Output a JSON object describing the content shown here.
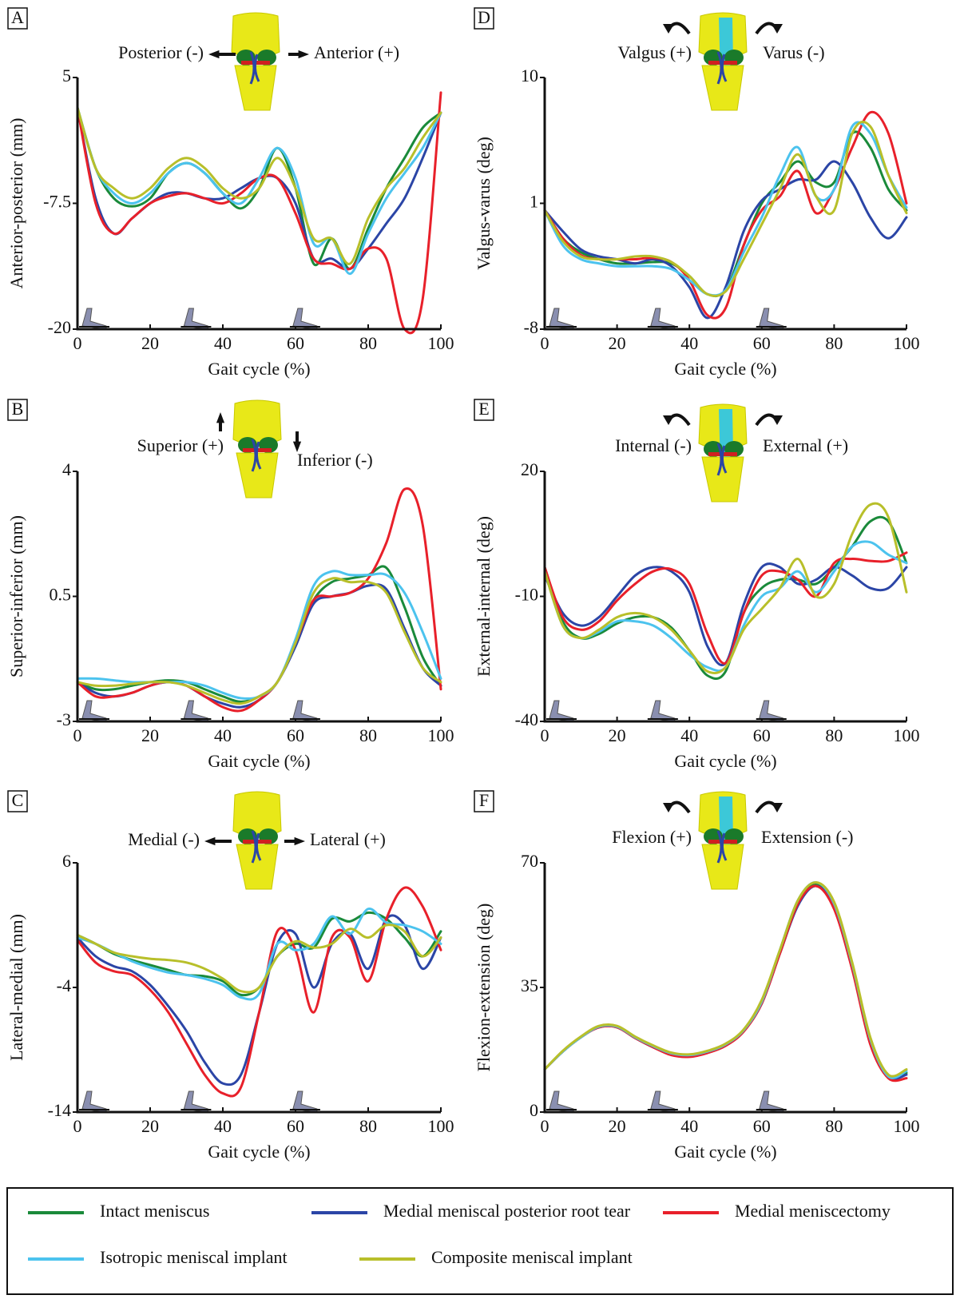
{
  "legend": [
    {
      "name": "Intact meniscus",
      "color": "#1a8a3a"
    },
    {
      "name": "Medial meniscal posterior root tear",
      "color": "#2b45a6"
    },
    {
      "name": "Medial meniscectomy",
      "color": "#e8202a"
    },
    {
      "name": "Isotropic meniscal implant",
      "color": "#4cc3ee"
    },
    {
      "name": "Composite meniscal implant",
      "color": "#b8bf2a"
    }
  ],
  "chart_data": [
    {
      "type": "line",
      "panel": "A",
      "left_label": "Posterior (-)",
      "right_label": "Anterior (+)",
      "ylabel": "Anterior-posterior (mm)",
      "xlabel": "Gait cycle (%)",
      "x": [
        0,
        5,
        10,
        15,
        20,
        25,
        30,
        35,
        40,
        45,
        50,
        55,
        60,
        65,
        70,
        75,
        80,
        85,
        90,
        95,
        100
      ],
      "xlim": [
        0,
        100
      ],
      "xticks": [
        0,
        20,
        40,
        60,
        80,
        100
      ],
      "ylim": [
        -20,
        5
      ],
      "yticks": [
        5,
        -7.5,
        -20
      ],
      "series": [
        {
          "values": [
            2,
            -4,
            -7,
            -7.8,
            -7,
            -4.5,
            -3.5,
            -4.5,
            -6.5,
            -8,
            -6,
            -2,
            -6,
            -13.5,
            -11,
            -14,
            -10,
            -6,
            -3,
            0,
            1.5
          ]
        },
        {
          "values": [
            2,
            -7,
            -10.5,
            -9,
            -7.5,
            -6.5,
            -6.5,
            -7,
            -7,
            -6,
            -5,
            -5,
            -7.5,
            -13,
            -13,
            -14,
            -12,
            -9.5,
            -7,
            -3,
            1.5
          ]
        },
        {
          "values": [
            2,
            -7.5,
            -10.5,
            -9,
            -7.5,
            -6.8,
            -6.5,
            -7,
            -7.5,
            -6.5,
            -5,
            -5,
            -8.5,
            -13,
            -13.5,
            -14,
            -12,
            -13,
            -20,
            -17,
            3.5
          ]
        },
        {
          "values": [
            2,
            -4,
            -6.5,
            -7.5,
            -6.5,
            -4.5,
            -3.5,
            -4.5,
            -6.5,
            -7.5,
            -5,
            -2,
            -5,
            -11.5,
            -11,
            -14.5,
            -10.5,
            -7,
            -4.5,
            -2,
            1.5
          ]
        },
        {
          "values": [
            2,
            -4,
            -6,
            -7,
            -6,
            -4,
            -3,
            -4,
            -6,
            -7,
            -6,
            -3,
            -6,
            -11,
            -11,
            -13.5,
            -9,
            -6,
            -4,
            -1,
            1.5
          ]
        }
      ]
    },
    {
      "type": "line",
      "panel": "B",
      "left_label": "Superior (+)",
      "right_label": "Inferior (-)",
      "ylabel": "Superior-inferior (mm)",
      "xlabel": "Gait cycle (%)",
      "x": [
        0,
        5,
        10,
        15,
        20,
        25,
        30,
        35,
        40,
        45,
        50,
        55,
        60,
        65,
        70,
        75,
        80,
        85,
        90,
        95,
        100
      ],
      "xlim": [
        0,
        100
      ],
      "xticks": [
        0,
        20,
        40,
        60,
        80,
        100
      ],
      "ylim": [
        -3,
        4
      ],
      "yticks": [
        4,
        0.5,
        -3
      ],
      "series": [
        {
          "values": [
            -1.9,
            -2.1,
            -2.1,
            -2,
            -1.9,
            -1.85,
            -1.9,
            -2.1,
            -2.3,
            -2.45,
            -2.3,
            -1.9,
            -0.8,
            0.4,
            0.9,
            1,
            1.1,
            1.3,
            0.2,
            -1.2,
            -2
          ]
        },
        {
          "values": [
            -1.9,
            -2.2,
            -2.3,
            -2.2,
            -2,
            -1.9,
            -2,
            -2.3,
            -2.5,
            -2.6,
            -2.4,
            -1.9,
            -0.9,
            0.3,
            0.5,
            0.6,
            0.8,
            0.7,
            -0.4,
            -1.5,
            -2
          ]
        },
        {
          "values": [
            -1.9,
            -2.3,
            -2.3,
            -2.2,
            -2,
            -1.9,
            -2,
            -2.3,
            -2.6,
            -2.7,
            -2.4,
            -1.9,
            -0.8,
            0.4,
            0.5,
            0.6,
            1,
            2,
            3.5,
            2.5,
            -2.1
          ]
        },
        {
          "values": [
            -1.8,
            -1.8,
            -1.85,
            -1.9,
            -1.9,
            -1.9,
            -1.9,
            -2,
            -2.2,
            -2.35,
            -2.3,
            -1.9,
            -0.7,
            0.8,
            1.2,
            1.1,
            1.1,
            1.1,
            0.6,
            -0.5,
            -1.8
          ]
        },
        {
          "values": [
            -1.9,
            -2,
            -2,
            -1.95,
            -1.9,
            -1.9,
            -2,
            -2.2,
            -2.4,
            -2.5,
            -2.3,
            -1.9,
            -0.8,
            0.6,
            1,
            0.9,
            0.9,
            0.6,
            -0.5,
            -1.5,
            -1.9
          ]
        }
      ]
    },
    {
      "type": "line",
      "panel": "C",
      "left_label": "Medial (-)",
      "right_label": "Lateral (+)",
      "ylabel": "Lateral-medial (mm)",
      "xlabel": "Gait cycle (%)",
      "x": [
        0,
        5,
        10,
        15,
        20,
        25,
        30,
        35,
        40,
        45,
        50,
        55,
        60,
        65,
        70,
        75,
        80,
        85,
        90,
        95,
        100
      ],
      "xlim": [
        0,
        100
      ],
      "xticks": [
        0,
        20,
        40,
        60,
        80,
        100
      ],
      "ylim": [
        -14,
        6
      ],
      "yticks": [
        6,
        -4,
        -14
      ],
      "series": [
        {
          "values": [
            0.2,
            -0.5,
            -1.3,
            -1.8,
            -2.2,
            -2.6,
            -3,
            -3.1,
            -3.5,
            -4.6,
            -4,
            -1.5,
            -0.5,
            -0.8,
            1.5,
            1.3,
            2,
            1.5,
            0,
            -1.5,
            0.5
          ]
        },
        {
          "values": [
            0,
            -1.5,
            -2.3,
            -2.7,
            -3.8,
            -5.5,
            -7.5,
            -10,
            -11.7,
            -11,
            -6,
            -0.5,
            0.3,
            -4,
            -0.5,
            0.3,
            -2.5,
            1.5,
            1,
            -2.5,
            0
          ]
        },
        {
          "values": [
            -0.2,
            -2,
            -2.7,
            -3,
            -4.2,
            -6,
            -8.5,
            -11,
            -12.5,
            -12,
            -6,
            0.5,
            -1,
            -6,
            0,
            0,
            -3.5,
            1.5,
            4,
            2.5,
            -1
          ]
        },
        {
          "values": [
            0,
            -0.5,
            -1.2,
            -1.9,
            -2.4,
            -2.8,
            -3,
            -3.3,
            -3.8,
            -4.8,
            -4.5,
            -0.5,
            -1,
            -0.5,
            1.7,
            0.3,
            2.3,
            1.2,
            1,
            0.5,
            -0.5
          ]
        },
        {
          "values": [
            0.2,
            -0.5,
            -1.2,
            -1.5,
            -1.7,
            -1.8,
            -2,
            -2.5,
            -3.3,
            -4.3,
            -4,
            -1.5,
            -0.3,
            -0.8,
            -0.5,
            0.7,
            0,
            1,
            0.5,
            -1.5,
            0
          ]
        }
      ]
    },
    {
      "type": "line",
      "panel": "D",
      "left_label": "Valgus (+)",
      "right_label": "Varus (-)",
      "ylabel": "Valgus-varus (deg)",
      "xlabel": "Gait cycle (%)",
      "x": [
        0,
        5,
        10,
        15,
        20,
        25,
        30,
        35,
        40,
        45,
        50,
        55,
        60,
        65,
        70,
        75,
        80,
        85,
        90,
        95,
        100
      ],
      "xlim": [
        0,
        100
      ],
      "xticks": [
        0,
        20,
        40,
        60,
        80,
        100
      ],
      "ylim": [
        -8,
        10
      ],
      "yticks": [
        10,
        1,
        -8
      ],
      "series": [
        {
          "values": [
            0.5,
            -1.5,
            -2.5,
            -3,
            -3.3,
            -3.3,
            -3.2,
            -3.3,
            -4.2,
            -5.5,
            -5.2,
            -2,
            1,
            2.5,
            4,
            2.5,
            2.5,
            6,
            5,
            2,
            0.5
          ]
        },
        {
          "values": [
            0.5,
            -1,
            -2.3,
            -2.8,
            -3,
            -3.3,
            -3,
            -3.5,
            -5,
            -7.2,
            -5,
            -1,
            1.2,
            2,
            2.7,
            2.7,
            4,
            2.5,
            0,
            -1.5,
            0
          ]
        },
        {
          "values": [
            0.5,
            -1.5,
            -2.7,
            -3,
            -3,
            -3,
            -2.9,
            -3.2,
            -4.5,
            -7,
            -6.5,
            -2,
            0.5,
            1.5,
            3.3,
            0.3,
            2,
            5,
            7.5,
            6,
            1
          ]
        },
        {
          "values": [
            0.5,
            -2,
            -3,
            -3.3,
            -3.5,
            -3.5,
            -3.5,
            -3.7,
            -4.5,
            -5.5,
            -5.2,
            -2.5,
            0,
            3,
            5,
            1.5,
            2,
            6.5,
            6,
            3,
            0.7
          ]
        },
        {
          "values": [
            0.5,
            -1.7,
            -2.8,
            -3,
            -3,
            -2.8,
            -2.8,
            -3.2,
            -4.2,
            -5.5,
            -5.3,
            -3,
            -0.5,
            2,
            4.5,
            1.5,
            0.5,
            6,
            6.5,
            3,
            0.3
          ]
        }
      ]
    },
    {
      "type": "line",
      "panel": "E",
      "left_label": "Internal (-)",
      "right_label": "External (+)",
      "ylabel": "External-internal (deg)",
      "xlabel": "Gait cycle (%)",
      "x": [
        0,
        5,
        10,
        15,
        20,
        25,
        30,
        35,
        40,
        45,
        50,
        55,
        60,
        65,
        70,
        75,
        80,
        85,
        90,
        95,
        100
      ],
      "xlim": [
        0,
        100
      ],
      "xticks": [
        0,
        20,
        40,
        60,
        80,
        100
      ],
      "ylim": [
        -40,
        20
      ],
      "yticks": [
        20,
        -10,
        -40
      ],
      "series": [
        {
          "values": [
            -3,
            -16,
            -20,
            -19,
            -16.5,
            -15,
            -15,
            -17.5,
            -23,
            -29,
            -28,
            -14,
            -8,
            -6,
            -6,
            -7,
            -3,
            2,
            8,
            8,
            -2
          ]
        },
        {
          "values": [
            -5,
            -14,
            -17,
            -15,
            -10,
            -5,
            -3,
            -4,
            -9,
            -22,
            -26,
            -12,
            -3,
            -3,
            -7,
            -6,
            -3,
            -5,
            -8,
            -8,
            -3
          ]
        },
        {
          "values": [
            -3,
            -15,
            -18,
            -16,
            -11,
            -7,
            -4,
            -3.5,
            -7,
            -19,
            -26,
            -14,
            -5,
            -4,
            -6,
            -10,
            -2,
            -1,
            -1.5,
            -1.5,
            0.5
          ]
        },
        {
          "values": [
            -4,
            -17,
            -20,
            -18.5,
            -16,
            -16,
            -17,
            -20,
            -24,
            -27,
            -27,
            -17,
            -10,
            -8,
            -4,
            -9,
            -4,
            2,
            3,
            0,
            -2
          ]
        },
        {
          "values": [
            -4,
            -17,
            -20,
            -18,
            -15,
            -14,
            -15,
            -18,
            -23,
            -28,
            -27,
            -18,
            -13,
            -8,
            -1,
            -10,
            -7,
            5,
            12,
            9,
            -9
          ]
        }
      ]
    },
    {
      "type": "line",
      "panel": "F",
      "left_label": "Flexion (+)",
      "right_label": "Extension (-)",
      "ylabel": "Flexion-extension (deg)",
      "xlabel": "Gait cycle (%)",
      "x": [
        0,
        5,
        10,
        15,
        20,
        25,
        30,
        35,
        40,
        45,
        50,
        55,
        60,
        65,
        70,
        75,
        80,
        85,
        90,
        95,
        100
      ],
      "xlim": [
        0,
        100
      ],
      "xticks": [
        0,
        20,
        40,
        60,
        80,
        100
      ],
      "ylim": [
        0,
        70
      ],
      "yticks": [
        70,
        35,
        0
      ],
      "series": [
        {
          "values": [
            12,
            17,
            21,
            24,
            24,
            21,
            18.5,
            16.5,
            16,
            17,
            19,
            23,
            31,
            45,
            59,
            64,
            58,
            41,
            20,
            10,
            11
          ]
        },
        {
          "values": [
            12,
            17,
            21,
            23.8,
            23.8,
            20.8,
            18.2,
            16.2,
            15.7,
            16.8,
            18.8,
            22.8,
            30.5,
            44.5,
            58,
            63.5,
            57.5,
            40.5,
            19.5,
            9.8,
            10.5
          ]
        },
        {
          "values": [
            12,
            17,
            21,
            23.8,
            23.8,
            20.8,
            18.2,
            16,
            15.5,
            16.6,
            18.6,
            22.6,
            30.5,
            44.5,
            58.5,
            63.5,
            57,
            40,
            19,
            9.5,
            9.5
          ]
        },
        {
          "values": [
            12,
            17,
            21,
            24,
            24,
            21,
            18.5,
            16.5,
            16,
            17,
            19,
            23,
            31,
            45.5,
            59.5,
            64.5,
            58.5,
            41.5,
            20.5,
            10,
            11.5
          ]
        },
        {
          "values": [
            12,
            17.2,
            21.2,
            24.2,
            24.2,
            21.2,
            18.7,
            16.7,
            16.2,
            17.2,
            19.2,
            23.2,
            31.5,
            45.5,
            59.5,
            64.5,
            59,
            42,
            21,
            10.5,
            12
          ]
        }
      ]
    }
  ]
}
